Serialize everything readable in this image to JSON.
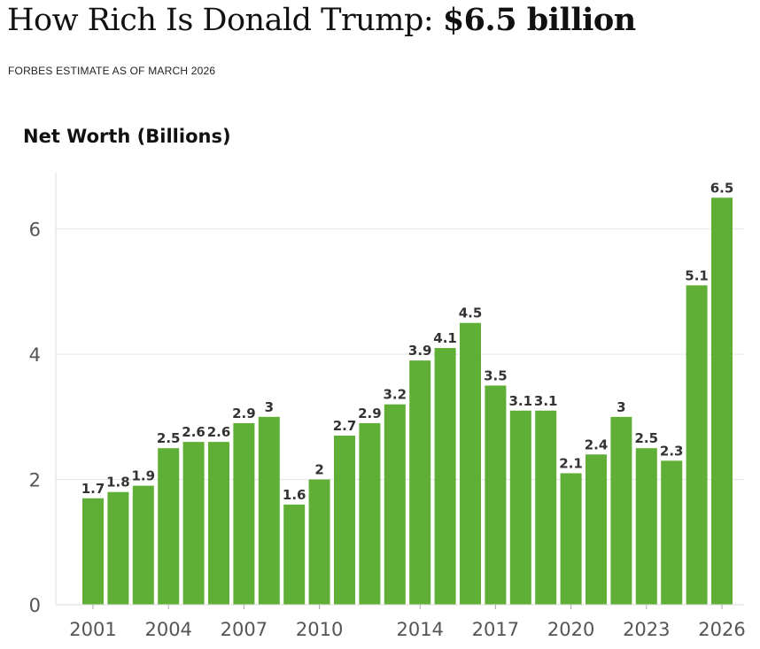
{
  "header": {
    "title_prefix": "How Rich Is Donald Trump:",
    "title_amount": "$6.5 billion",
    "subtitle": "FORBES ESTIMATE AS OF MARCH 2026"
  },
  "colors": {
    "bar": "#5fae35",
    "grid": "#e6e6e6",
    "axis": "#dddddd"
  },
  "chart_data": {
    "type": "bar",
    "title": "Net Worth (Billions)",
    "xlabel": "",
    "ylabel": "",
    "categories": [
      "2001",
      "2002",
      "2003",
      "2004",
      "2005",
      "2006",
      "2007",
      "2008",
      "2009",
      "2010",
      "2011",
      "2012",
      "2013",
      "2014",
      "2015",
      "2016",
      "2017",
      "2018",
      "2019",
      "2020",
      "2021",
      "2022",
      "2023",
      "2024",
      "2025",
      "2026"
    ],
    "values": [
      1.7,
      1.8,
      1.9,
      2.5,
      2.6,
      2.6,
      2.9,
      3,
      1.6,
      2,
      2.7,
      2.9,
      3.2,
      3.9,
      4.1,
      4.5,
      3.5,
      3.1,
      3.1,
      2.1,
      2.4,
      3,
      2.5,
      2.3,
      5.1,
      6.5
    ],
    "value_labels": [
      "1.7",
      "1.8",
      "1.9",
      "2.5",
      "2.6",
      "2.6",
      "2.9",
      "3",
      "1.6",
      "2",
      "2.7",
      "2.9",
      "3.2",
      "3.9",
      "4.1",
      "4.5",
      "3.5",
      "3.1",
      "3.1",
      "2.1",
      "2.4",
      "3",
      "2.5",
      "2.3",
      "5.1",
      "6.5"
    ],
    "x_tick_labels": [
      "2001",
      "2004",
      "2007",
      "2010",
      "2014",
      "2017",
      "2020",
      "2023",
      "2026"
    ],
    "y_ticks": [
      0,
      2,
      4,
      6
    ],
    "y_tick_labels": [
      "0",
      "2",
      "4",
      "6"
    ],
    "ylim": [
      0,
      6.9
    ],
    "grid": true
  }
}
